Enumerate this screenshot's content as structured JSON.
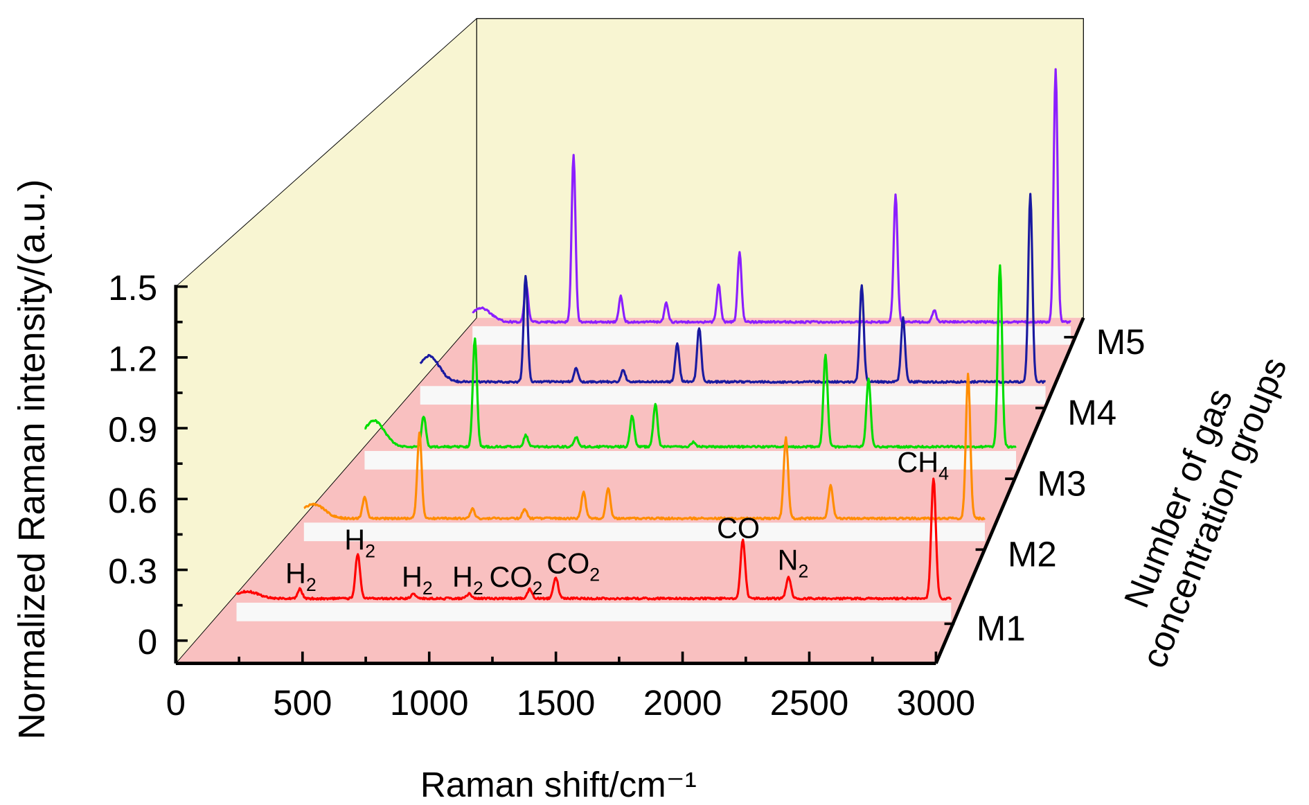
{
  "chart_data": {
    "type": "line",
    "subtype": "3d-waterfall",
    "xlabel": "Raman shift/cm⁻¹",
    "ylabel": "Normalized Raman intensity/(a.u.)",
    "zlabel": [
      "Number of gas",
      "concentration groups"
    ],
    "xlim": [
      0,
      3000
    ],
    "ylim": [
      0,
      1.5
    ],
    "x_ticks": [
      "0",
      "500",
      "1000",
      "1500",
      "2000",
      "2500",
      "3000"
    ],
    "y_ticks": [
      "0",
      "0.3",
      "0.6",
      "0.9",
      "1.2",
      "1.5"
    ],
    "z_ticks": [
      "M1",
      "M2",
      "M3",
      "M4",
      "M5"
    ],
    "colors": {
      "back_wall": "#f8f5d2",
      "floor": "#f9c0c0",
      "strip": "#f8f8f8"
    },
    "series": [
      {
        "name": "M1",
        "color": "#ff0000",
        "x_range": [
          250,
          3050
        ],
        "start_hump": 0.03,
        "peaks": [
          [
            498,
            0.04
          ],
          [
            725,
            0.19
          ],
          [
            943,
            0.02
          ],
          [
            1161,
            0.02
          ],
          [
            1399,
            0.04
          ],
          [
            1501,
            0.09
          ],
          [
            2234,
            0.25
          ],
          [
            2413,
            0.09
          ],
          [
            2981,
            0.51
          ]
        ]
      },
      {
        "name": "M2",
        "color": "#ff8c00",
        "x_range": [
          250,
          3050
        ],
        "start_hump": 0.06,
        "peaks": [
          [
            500,
            0.09
          ],
          [
            725,
            0.36
          ],
          [
            943,
            0.04
          ],
          [
            1158,
            0.04
          ],
          [
            1400,
            0.11
          ],
          [
            1501,
            0.13
          ],
          [
            2232,
            0.34
          ],
          [
            2416,
            0.14
          ],
          [
            2981,
            0.61
          ]
        ]
      },
      {
        "name": "M3",
        "color": "#00dd00",
        "x_range": [
          250,
          3050
        ],
        "start_hump": 0.11,
        "peaks": [
          [
            504,
            0.13
          ],
          [
            724,
            0.46
          ],
          [
            943,
            0.05
          ],
          [
            1160,
            0.04
          ],
          [
            1400,
            0.13
          ],
          [
            1500,
            0.18
          ],
          [
            1663,
            0.02
          ],
          [
            2231,
            0.39
          ],
          [
            2416,
            0.29
          ],
          [
            2981,
            0.77
          ]
        ]
      },
      {
        "name": "M4",
        "color": "#1a1aa0",
        "x_range": [
          250,
          3050
        ],
        "start_hump": 0.11,
        "peaks": [
          [
            722,
            0.45
          ],
          [
            948,
            0.06
          ],
          [
            1159,
            0.05
          ],
          [
            1401,
            0.16
          ],
          [
            1499,
            0.23
          ],
          [
            2227,
            0.41
          ],
          [
            2412,
            0.27
          ],
          [
            2982,
            0.8
          ]
        ]
      },
      {
        "name": "M5",
        "color": "#8b1eff",
        "x_range": [
          250,
          3050
        ],
        "start_hump": 0.06,
        "peaks": [
          [
            502,
            0.16
          ],
          [
            723,
            0.71
          ],
          [
            944,
            0.11
          ],
          [
            1157,
            0.08
          ],
          [
            1402,
            0.16
          ],
          [
            1500,
            0.3
          ],
          [
            2230,
            0.54
          ],
          [
            2411,
            0.05
          ],
          [
            2979,
            1.07
          ]
        ]
      }
    ],
    "annotations": [
      {
        "base": "H",
        "sub": "2"
      },
      {
        "base": "H",
        "sub": "2"
      },
      {
        "base": "H",
        "sub": "2"
      },
      {
        "base": "H",
        "sub": "2"
      },
      {
        "base": "CO",
        "sub": "2"
      },
      {
        "base": "CO",
        "sub": "2"
      },
      {
        "base": "CO",
        "sub": ""
      },
      {
        "base": "N",
        "sub": "2"
      },
      {
        "base": "CH",
        "sub": "4"
      }
    ]
  }
}
